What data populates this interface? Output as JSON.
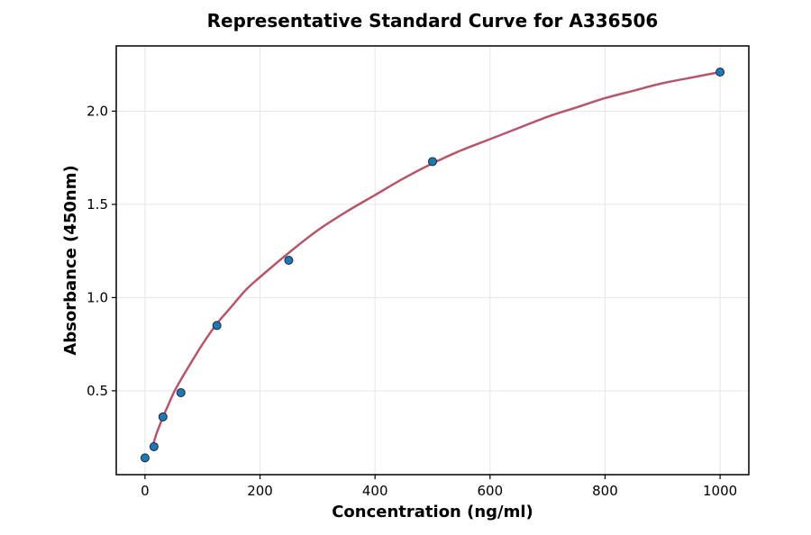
{
  "chart_data": {
    "type": "scatter",
    "title": "Representative Standard Curve for A336506",
    "xlabel": "Concentration (ng/ml)",
    "ylabel": "Absorbance (450nm)",
    "xlim": [
      -50,
      1050
    ],
    "ylim": [
      0.05,
      2.35
    ],
    "xticks": [
      0,
      200,
      400,
      600,
      800,
      1000
    ],
    "xtick_labels": [
      "0",
      "200",
      "400",
      "600",
      "800",
      "1000"
    ],
    "yticks": [
      0.5,
      1.0,
      1.5,
      2.0
    ],
    "ytick_labels": [
      "0.5",
      "1.0",
      "1.5",
      "2.0"
    ],
    "grid": true,
    "legend": "none",
    "series": [
      {
        "type": "scatter",
        "x": [
          0,
          15.625,
          31.25,
          62.5,
          125,
          250,
          500,
          1000
        ],
        "y": [
          0.14,
          0.2,
          0.36,
          0.49,
          0.85,
          1.2,
          1.73,
          2.21
        ],
        "color": "#1f77b4",
        "edge_color": "#1a2a3a"
      },
      {
        "type": "line",
        "x": [
          15,
          20,
          25,
          31.25,
          40,
          50,
          62.5,
          80,
          100,
          125,
          150,
          175,
          200,
          250,
          300,
          350,
          400,
          450,
          500,
          550,
          600,
          650,
          700,
          750,
          800,
          850,
          900,
          950,
          1000
        ],
        "y": [
          0.22,
          0.27,
          0.31,
          0.36,
          0.42,
          0.49,
          0.56,
          0.65,
          0.75,
          0.86,
          0.95,
          1.04,
          1.11,
          1.24,
          1.36,
          1.46,
          1.55,
          1.64,
          1.72,
          1.79,
          1.85,
          1.91,
          1.97,
          2.02,
          2.07,
          2.11,
          2.15,
          2.18,
          2.21
        ],
        "color": "#b5566a"
      }
    ]
  }
}
